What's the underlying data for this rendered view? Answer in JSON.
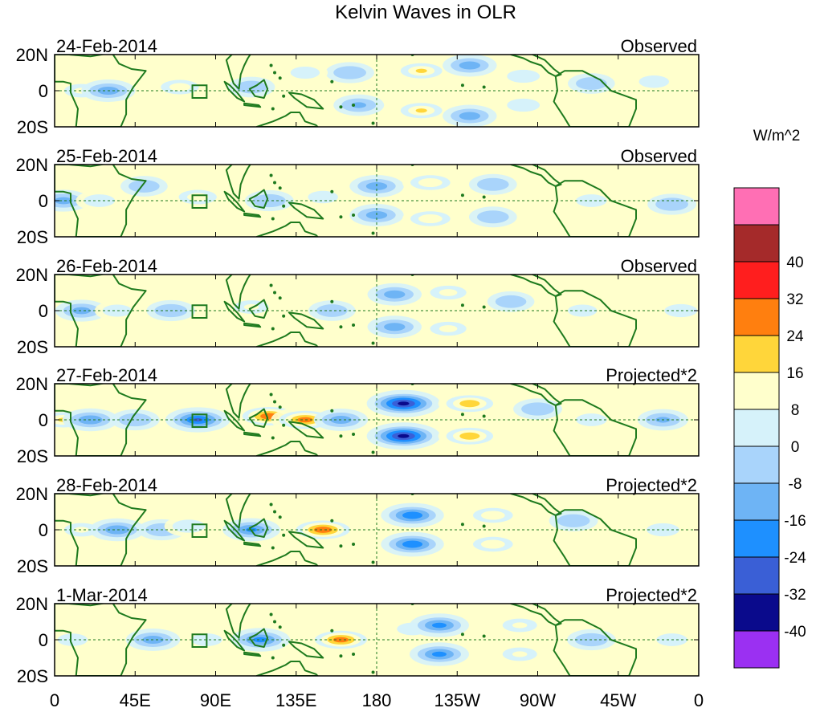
{
  "chart_data": {
    "type": "heatmap",
    "title": "Kelvin Waves in OLR",
    "colorbar": {
      "label": "W/m^2",
      "colors": [
        "#9B30F2",
        "#0A0A8C",
        "#3A5FD6",
        "#1E90FF",
        "#6EB4F5",
        "#A9D4FB",
        "#D6F2FA",
        "#FFFFCC",
        "#FFD63A",
        "#FF7F0F",
        "#FF1E1E",
        "#A52A2A",
        "#FF6FB4"
      ],
      "ticks": [
        "-40",
        "-32",
        "-24",
        "-16",
        "-8",
        "0",
        "8",
        "16",
        "24",
        "32",
        "40"
      ]
    },
    "xaxis": {
      "lon_range": [
        0,
        360
      ],
      "ticks": [
        {
          "lon": 0,
          "label": "0"
        },
        {
          "lon": 45,
          "label": "45E"
        },
        {
          "lon": 90,
          "label": "90E"
        },
        {
          "lon": 135,
          "label": "135E"
        },
        {
          "lon": 180,
          "label": "180"
        },
        {
          "lon": 225,
          "label": "135W"
        },
        {
          "lon": 270,
          "label": "90W"
        },
        {
          "lon": 315,
          "label": "45W"
        },
        {
          "lon": 360,
          "label": "0"
        }
      ]
    },
    "yaxis": {
      "lat_range": [
        -20,
        20
      ],
      "ticks": [
        {
          "lat": 20,
          "label": "20N"
        },
        {
          "lat": 0,
          "label": "0"
        },
        {
          "lat": -20,
          "label": "20S"
        }
      ]
    },
    "panels": [
      {
        "date": "24-Feb-2014",
        "label": "Observed",
        "anomalies": [
          {
            "lon": 15,
            "lat": 0,
            "v": 10
          },
          {
            "lon": 30,
            "lat": 0,
            "v": -14
          },
          {
            "lon": 70,
            "lat": 2,
            "v": 14
          },
          {
            "lon": 110,
            "lat": 2,
            "v": -6
          },
          {
            "lon": 165,
            "lat": 10,
            "v": -8
          },
          {
            "lon": 170,
            "lat": -8,
            "v": -10
          },
          {
            "lon": 205,
            "lat": 11,
            "v": 18
          },
          {
            "lon": 205,
            "lat": -11,
            "v": 18
          },
          {
            "lon": 232,
            "lat": 14,
            "v": -14
          },
          {
            "lon": 232,
            "lat": -14,
            "v": -14
          },
          {
            "lon": 262,
            "lat": 8,
            "v": 8
          },
          {
            "lon": 262,
            "lat": -8,
            "v": 8
          },
          {
            "lon": 300,
            "lat": 4,
            "v": -6
          },
          {
            "lon": 335,
            "lat": 5,
            "v": 5
          },
          {
            "lon": 140,
            "lat": 10,
            "v": 4
          }
        ]
      },
      {
        "date": "25-Feb-2014",
        "label": "Observed",
        "anomalies": [
          {
            "lon": 5,
            "lat": 0,
            "v": -12
          },
          {
            "lon": 25,
            "lat": 0,
            "v": 6
          },
          {
            "lon": 50,
            "lat": 8,
            "v": -6
          },
          {
            "lon": 80,
            "lat": 2,
            "v": 14
          },
          {
            "lon": 120,
            "lat": 0,
            "v": -8
          },
          {
            "lon": 180,
            "lat": 8,
            "v": -14
          },
          {
            "lon": 180,
            "lat": -8,
            "v": -14
          },
          {
            "lon": 210,
            "lat": 10,
            "v": 16
          },
          {
            "lon": 210,
            "lat": -10,
            "v": 16
          },
          {
            "lon": 245,
            "lat": 9,
            "v": -7
          },
          {
            "lon": 245,
            "lat": -9,
            "v": -7
          },
          {
            "lon": 300,
            "lat": 0,
            "v": 6
          },
          {
            "lon": 345,
            "lat": -2,
            "v": -8
          },
          {
            "lon": 150,
            "lat": 2,
            "v": 5
          }
        ]
      },
      {
        "date": "26-Feb-2014",
        "label": "Observed",
        "anomalies": [
          {
            "lon": 15,
            "lat": 0,
            "v": -12
          },
          {
            "lon": 35,
            "lat": 0,
            "v": 4
          },
          {
            "lon": 65,
            "lat": 0,
            "v": -8
          },
          {
            "lon": 110,
            "lat": 2,
            "v": 10
          },
          {
            "lon": 155,
            "lat": 0,
            "v": -6
          },
          {
            "lon": 190,
            "lat": 9,
            "v": -14
          },
          {
            "lon": 190,
            "lat": -9,
            "v": -14
          },
          {
            "lon": 220,
            "lat": 10,
            "v": 12
          },
          {
            "lon": 220,
            "lat": -10,
            "v": 12
          },
          {
            "lon": 255,
            "lat": 5,
            "v": -6
          },
          {
            "lon": 295,
            "lat": 0,
            "v": 4
          },
          {
            "lon": 350,
            "lat": 0,
            "v": 8
          }
        ]
      },
      {
        "date": "27-Feb-2014",
        "label": "Projected*2",
        "anomalies": [
          {
            "lon": 5,
            "lat": 0,
            "v": 18
          },
          {
            "lon": 20,
            "lat": 0,
            "v": -16
          },
          {
            "lon": 45,
            "lat": 0,
            "v": -8
          },
          {
            "lon": 80,
            "lat": 0,
            "v": -26
          },
          {
            "lon": 120,
            "lat": 2,
            "v": 32
          },
          {
            "lon": 140,
            "lat": 0,
            "v": 30
          },
          {
            "lon": 160,
            "lat": 0,
            "v": -14
          },
          {
            "lon": 195,
            "lat": 9,
            "v": -36
          },
          {
            "lon": 195,
            "lat": -9,
            "v": -36
          },
          {
            "lon": 232,
            "lat": 9,
            "v": 24
          },
          {
            "lon": 232,
            "lat": -9,
            "v": 24
          },
          {
            "lon": 270,
            "lat": 6,
            "v": -8
          },
          {
            "lon": 300,
            "lat": 0,
            "v": 6
          },
          {
            "lon": 340,
            "lat": 0,
            "v": -10
          }
        ]
      },
      {
        "date": "28-Feb-2014",
        "label": "Projected*2",
        "anomalies": [
          {
            "lon": 15,
            "lat": 0,
            "v": 10
          },
          {
            "lon": 35,
            "lat": 0,
            "v": -16
          },
          {
            "lon": 60,
            "lat": 0,
            "v": -8
          },
          {
            "lon": 75,
            "lat": 2,
            "v": 8
          },
          {
            "lon": 110,
            "lat": 0,
            "v": -18
          },
          {
            "lon": 150,
            "lat": 0,
            "v": 32
          },
          {
            "lon": 200,
            "lat": 8,
            "v": -24
          },
          {
            "lon": 200,
            "lat": -8,
            "v": -24
          },
          {
            "lon": 245,
            "lat": 8,
            "v": 16
          },
          {
            "lon": 245,
            "lat": -8,
            "v": 16
          },
          {
            "lon": 290,
            "lat": 5,
            "v": -8
          },
          {
            "lon": 340,
            "lat": 0,
            "v": 8
          }
        ]
      },
      {
        "date": "1-Mar-2014",
        "label": "Projected*2",
        "anomalies": [
          {
            "lon": 10,
            "lat": 0,
            "v": 5
          },
          {
            "lon": 55,
            "lat": 0,
            "v": -14
          },
          {
            "lon": 85,
            "lat": 0,
            "v": 6
          },
          {
            "lon": 115,
            "lat": 0,
            "v": -20
          },
          {
            "lon": 160,
            "lat": 0,
            "v": 30
          },
          {
            "lon": 200,
            "lat": 6,
            "v": 6
          },
          {
            "lon": 215,
            "lat": 8,
            "v": -20
          },
          {
            "lon": 215,
            "lat": -8,
            "v": -20
          },
          {
            "lon": 260,
            "lat": 8,
            "v": 10
          },
          {
            "lon": 260,
            "lat": -8,
            "v": 10
          },
          {
            "lon": 300,
            "lat": 0,
            "v": -8
          },
          {
            "lon": 345,
            "lat": 0,
            "v": 6
          }
        ]
      }
    ]
  }
}
